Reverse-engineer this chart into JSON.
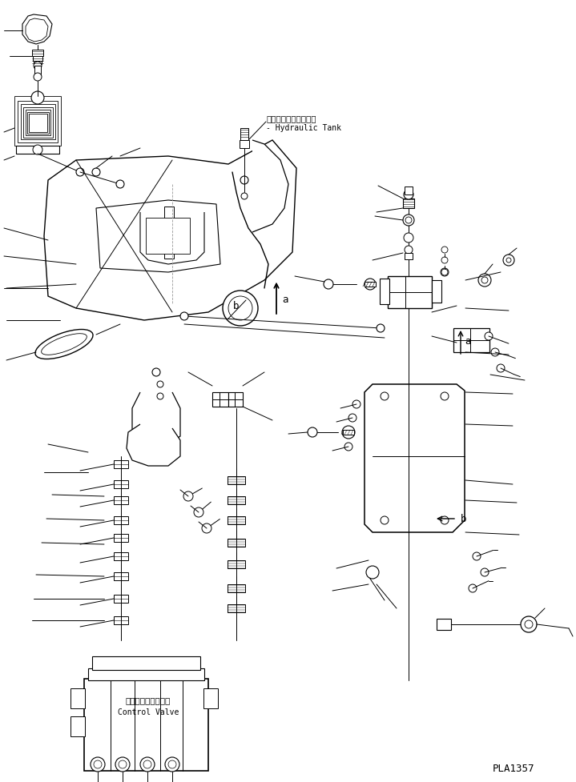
{
  "background_color": "#ffffff",
  "line_color": "#000000",
  "part_number": "PLA1357",
  "label_hydraulic_jp": "ハイドロリックタンク",
  "label_hydraulic_en": "Hydraulic Tank",
  "label_control_jp": "コントロールバルブ",
  "label_control_en": "Control Valve",
  "fig_width": 7.19,
  "fig_height": 9.77,
  "dpi": 100
}
